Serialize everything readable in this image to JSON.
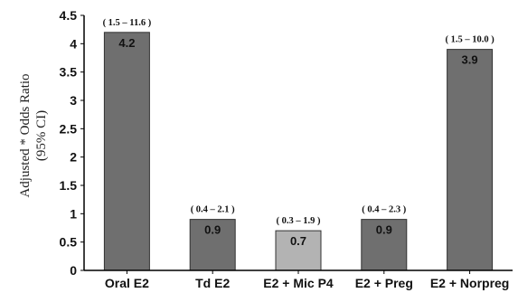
{
  "chart_data": {
    "type": "bar",
    "title": "",
    "xlabel": "",
    "ylabel_line1": "Adjusted * Odds Ratio",
    "ylabel_line2": "(95% CI)",
    "ylim": [
      0,
      4.5
    ],
    "yticks": [
      "0",
      "0.5",
      "1",
      "1.5",
      "2",
      "2.5",
      "3",
      "3.5",
      "4",
      "4.5"
    ],
    "categories": [
      "Oral E2",
      "Td E2",
      "E2 + Mic P4",
      "E2 + Preg",
      "E2 + Norpreg"
    ],
    "values": [
      4.2,
      0.9,
      0.7,
      0.9,
      3.9
    ],
    "value_labels": [
      "4.2",
      "0.9",
      "0.7",
      "0.9",
      "3.9"
    ],
    "ci_labels": [
      "( 1.5 – 11.6 )",
      "( 0.4 – 2.1 )",
      "( 0.3 – 1.9 )",
      "( 0.4 – 2.3 )",
      "( 1.5 – 10.0 )"
    ],
    "bar_colors": [
      "#6f6f6f",
      "#6f6f6f",
      "#b3b3b3",
      "#6f6f6f",
      "#6f6f6f"
    ],
    "grid": false,
    "legend": "none"
  }
}
